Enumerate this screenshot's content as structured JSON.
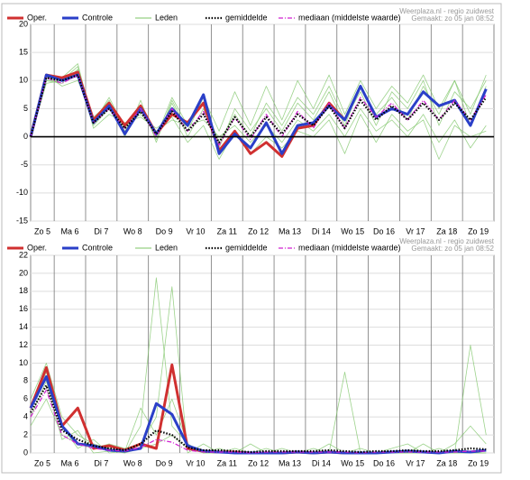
{
  "chart_data": [
    {
      "type": "line",
      "source": "Weerplaza.nl - regio zuidwest",
      "created": "Gemaakt: zo 05 jan 08:52",
      "x": [
        0.25,
        0.75,
        1.25,
        1.75,
        2.25,
        2.75,
        3.25,
        3.75,
        4.25,
        4.75,
        5.25,
        5.75,
        6.25,
        6.75,
        7.25,
        7.75,
        8.25,
        8.75,
        9.25,
        9.75,
        10.25,
        10.75,
        11.25,
        11.75,
        12.25,
        12.75,
        13.25,
        13.75,
        14.25,
        14.75
      ],
      "xlim": [
        0.25,
        15
      ],
      "xticks": [
        {
          "value": 0,
          "label": "Zo 5"
        },
        {
          "value": 1,
          "label": "Ma 6"
        },
        {
          "value": 2,
          "label": "Di 7"
        },
        {
          "value": 3,
          "label": "Wo 8"
        },
        {
          "value": 4,
          "label": "Do 9"
        },
        {
          "value": 5,
          "label": "Vr 10"
        },
        {
          "value": 6,
          "label": "Za 11"
        },
        {
          "value": 7,
          "label": "Zo 12"
        },
        {
          "value": 8,
          "label": "Ma 13"
        },
        {
          "value": 9,
          "label": "Di 14"
        },
        {
          "value": 10,
          "label": "Wo 15"
        },
        {
          "value": 11,
          "label": "Do 16"
        },
        {
          "value": 12,
          "label": "Vr 17"
        },
        {
          "value": 13,
          "label": "Za 18"
        },
        {
          "value": 14,
          "label": "Zo 19"
        }
      ],
      "ylim": [
        -15,
        20
      ],
      "yticks": [
        -15,
        -10,
        -5,
        0,
        5,
        10,
        15,
        20
      ],
      "grid": true,
      "zero_line": true,
      "series": [
        {
          "name": "Oper.",
          "color": "#d03030",
          "values": [
            0,
            11,
            10.5,
            11.5,
            3,
            6,
            2,
            5.5,
            0.5,
            4,
            2.5,
            6,
            -2.5,
            1,
            -3,
            -1,
            -3.5,
            1.5,
            2,
            6,
            3,
            null,
            null,
            null,
            null,
            null,
            null,
            null,
            null,
            null
          ]
        },
        {
          "name": "Controle",
          "color": "#2a3fc8",
          "values": [
            0,
            11,
            10,
            11,
            2.5,
            5.5,
            0.5,
            5,
            0.5,
            5,
            2,
            7.5,
            -3,
            0.5,
            -2,
            2.5,
            -3,
            2,
            2.5,
            5.5,
            3,
            9,
            3.5,
            5,
            4,
            8,
            5.5,
            6.5,
            2,
            8.5
          ]
        },
        {
          "name": "Leden",
          "color": "#7cc466",
          "members": [
            [
              0,
              10,
              9.5,
              12,
              3,
              6.5,
              1,
              5.5,
              -0.5,
              6,
              0,
              5,
              -2,
              5,
              1,
              5,
              1,
              6,
              3,
              8,
              2,
              9,
              4,
              7,
              3,
              9,
              4,
              10,
              2,
              9
            ],
            [
              0,
              10.5,
              10.5,
              13,
              2,
              5,
              2,
              4,
              1,
              3,
              2,
              3,
              0,
              2,
              -1,
              2,
              -1,
              3,
              1,
              4,
              0,
              5,
              1,
              3,
              0,
              4,
              -1,
              3,
              -2,
              2
            ],
            [
              0,
              11,
              9,
              10,
              3.5,
              6,
              0,
              6.5,
              -1,
              6.5,
              1,
              7,
              1,
              8,
              2,
              9,
              3,
              10,
              5,
              11,
              4,
              10,
              5,
              9,
              6,
              11,
              5,
              10,
              4,
              11
            ],
            [
              0,
              9.5,
              10,
              11.5,
              1.5,
              4,
              2.5,
              3.5,
              1.5,
              3.5,
              -1,
              2,
              -4,
              1,
              -3,
              0,
              -2,
              1,
              0,
              3,
              -3,
              4,
              -1,
              4,
              1,
              3,
              -4,
              2,
              0,
              1
            ],
            [
              0,
              10,
              10,
              12.5,
              2.5,
              7,
              1.5,
              5,
              0,
              7,
              2,
              6,
              -1,
              4,
              0,
              6,
              2,
              7,
              4,
              9,
              3,
              8,
              2,
              8,
              5,
              10,
              2,
              8,
              5,
              10
            ]
          ]
        },
        {
          "name": "gemiddelde",
          "color": "#000000",
          "values": [
            0,
            10.5,
            10,
            11,
            2.5,
            5,
            1.5,
            4.5,
            0.5,
            4.5,
            1,
            4,
            -1,
            3.5,
            0,
            3.5,
            0.5,
            4,
            2,
            5.5,
            1.5,
            6.5,
            3,
            5.5,
            3,
            6,
            3,
            6,
            3,
            7
          ]
        },
        {
          "name": "mediaan (middelste waarde)",
          "color": "#d020d0",
          "values": [
            0,
            10.5,
            9.5,
            11,
            2.5,
            5,
            1.5,
            5,
            0,
            5,
            1,
            4.5,
            -1.5,
            3.5,
            -0.5,
            4,
            0,
            4.5,
            1.5,
            6,
            1.5,
            7,
            3.5,
            6,
            3,
            6.5,
            3,
            6.5,
            3,
            7.5
          ]
        }
      ]
    },
    {
      "type": "line",
      "source": "Weerplaza.nl - regio zuidwest",
      "created": "Gemaakt: zo 05 jan 08:52",
      "x": [
        0.25,
        0.75,
        1.25,
        1.75,
        2.25,
        2.75,
        3.25,
        3.75,
        4.25,
        4.75,
        5.25,
        5.75,
        6.25,
        6.75,
        7.25,
        7.75,
        8.25,
        8.75,
        9.25,
        9.75,
        10.25,
        10.75,
        11.25,
        11.75,
        12.25,
        12.75,
        13.25,
        13.75,
        14.25,
        14.75
      ],
      "xlim": [
        0.25,
        15
      ],
      "xticks": [
        {
          "value": 0,
          "label": "Zo 5"
        },
        {
          "value": 1,
          "label": "Ma 6"
        },
        {
          "value": 2,
          "label": "Di 7"
        },
        {
          "value": 3,
          "label": "Wo 8"
        },
        {
          "value": 4,
          "label": "Do 9"
        },
        {
          "value": 5,
          "label": "Vr 10"
        },
        {
          "value": 6,
          "label": "Za 11"
        },
        {
          "value": 7,
          "label": "Zo 12"
        },
        {
          "value": 8,
          "label": "Ma 13"
        },
        {
          "value": 9,
          "label": "Di 14"
        },
        {
          "value": 10,
          "label": "Wo 15"
        },
        {
          "value": 11,
          "label": "Do 16"
        },
        {
          "value": 12,
          "label": "Vr 17"
        },
        {
          "value": 13,
          "label": "Za 18"
        },
        {
          "value": 14,
          "label": "Zo 19"
        }
      ],
      "ylim": [
        0,
        22
      ],
      "yticks": [
        0,
        2,
        4,
        6,
        8,
        10,
        12,
        14,
        16,
        18,
        20,
        22
      ],
      "grid": true,
      "zero_line": false,
      "series": [
        {
          "name": "Oper.",
          "color": "#d03030",
          "values": [
            5,
            9.5,
            3,
            5,
            0.5,
            0.8,
            0.3,
            1,
            0.5,
            9.8,
            0.5,
            0.2,
            0.1,
            0.1,
            0,
            0,
            0,
            0.1,
            0,
            0.1,
            0,
            null,
            null,
            null,
            null,
            null,
            null,
            null,
            null,
            null
          ]
        },
        {
          "name": "Controle",
          "color": "#2a3fc8",
          "values": [
            5,
            8.5,
            3,
            1,
            0.8,
            0.3,
            0.2,
            0.5,
            5.5,
            4.3,
            0.8,
            0.2,
            0.1,
            0,
            0,
            0,
            0,
            0.1,
            0,
            0.1,
            0,
            0,
            0,
            0.1,
            0.2,
            0.1,
            0,
            0.2,
            0.1,
            0.3
          ]
        },
        {
          "name": "Leden",
          "color": "#7cc466",
          "members": [
            [
              6,
              10,
              4,
              2,
              1,
              0.5,
              0,
              3,
              19.5,
              3,
              1,
              0,
              0.5,
              0,
              0,
              0.5,
              0,
              0,
              0,
              1,
              0,
              0,
              0,
              0.5,
              1,
              0,
              0,
              1,
              3,
              1
            ],
            [
              3,
              6,
              2,
              1,
              0.5,
              1,
              0.5,
              1,
              4,
              18.5,
              0,
              1,
              0,
              0,
              1,
              0,
              0,
              0,
              0,
              0,
              0,
              0,
              0,
              0,
              0,
              0,
              0,
              0,
              0,
              0
            ],
            [
              5,
              9,
              3,
              0.5,
              1.5,
              0,
              0.2,
              5,
              2,
              6,
              1,
              0,
              0,
              0.5,
              0,
              0,
              0.5,
              0,
              0,
              0,
              0,
              0.5,
              0,
              0,
              0,
              1,
              0,
              0,
              12,
              2
            ],
            [
              4,
              8,
              1.5,
              2.5,
              0,
              0.2,
              0,
              0.5,
              1,
              2,
              0.5,
              0,
              0,
              0,
              0,
              0,
              0,
              0,
              0.5,
              0,
              9,
              0,
              0,
              0,
              0,
              0,
              0.5,
              0,
              0,
              0
            ]
          ]
        },
        {
          "name": "gemiddelde",
          "color": "#000000",
          "values": [
            4.5,
            7.5,
            2.5,
            1.5,
            0.8,
            0.5,
            0.3,
            1,
            2.5,
            2,
            0.6,
            0.3,
            0.3,
            0.2,
            0.1,
            0.2,
            0.2,
            0.2,
            0.2,
            0.3,
            0.2,
            0.1,
            0.2,
            0.2,
            0.3,
            0.2,
            0.2,
            0.3,
            0.5,
            0.4
          ]
        },
        {
          "name": "mediaan (middelste waarde)",
          "color": "#d020d0",
          "values": [
            4,
            7,
            2,
            1,
            0.5,
            0.3,
            0.2,
            0.6,
            1.5,
            1.2,
            0.3,
            0.1,
            0.1,
            0.1,
            0,
            0.1,
            0.1,
            0.1,
            0.1,
            0.1,
            0.1,
            0,
            0.1,
            0.1,
            0.1,
            0.1,
            0.1,
            0.1,
            0.2,
            0.2
          ]
        }
      ]
    }
  ]
}
